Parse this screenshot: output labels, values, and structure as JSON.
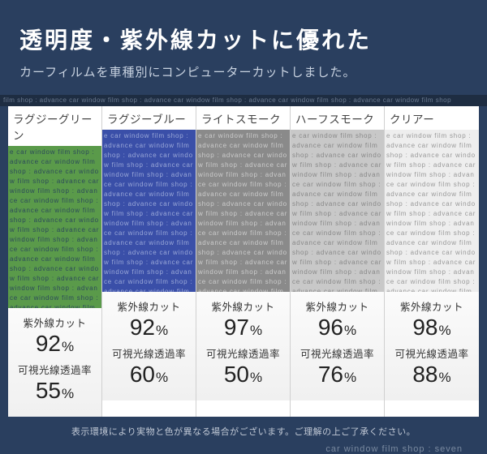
{
  "header": {
    "title": "透明度・紫外線カットに優れた",
    "subtitle": "カーフィルムを車種別にコンピューターカットしました。"
  },
  "strip_text": "film shop : advance car window film shop : advance car window film shop : advance car window film shop : advance car window film shop",
  "swatch_text": "e car window film shop : advance car window film shop : advance car window film shop : advance car window film shop : advance car window film shop : advance car window film shop : advance car window film shop : advance car window film shop : advance car window film shop : advance car window film shop : advance car window film shop : advance car window film shop : advance car window film shop : advance car window film shop : advance car window film shop : advance car window film shop : advance car window film shop : advance car window film shop",
  "stat_labels": {
    "uv": "紫外線カット",
    "vlt": "可視光線透過率"
  },
  "unit": "%",
  "products": [
    {
      "name": "ラグジーグリーン",
      "color": "#5a9a4a",
      "text_color": "#2c4a5a",
      "uv": "92",
      "vlt": "55"
    },
    {
      "name": "ラグジーブルー",
      "color": "#3a4fa8",
      "text_color": "#9aa8d8",
      "uv": "92",
      "vlt": "60"
    },
    {
      "name": "ライトスモーク",
      "color": "#8a8a8a",
      "text_color": "#cccccc",
      "uv": "97",
      "vlt": "50"
    },
    {
      "name": "ハーフスモーク",
      "color": "#c8c8c8",
      "text_color": "#888888",
      "uv": "96",
      "vlt": "76"
    },
    {
      "name": "クリアー",
      "color": "#eeeeee",
      "text_color": "#999999",
      "uv": "98",
      "vlt": "88"
    }
  ],
  "disclaimer": "表示環境により実物と色が異なる場合がございます。ご理解の上ご了承ください。",
  "footer": "car window film shop : seven"
}
